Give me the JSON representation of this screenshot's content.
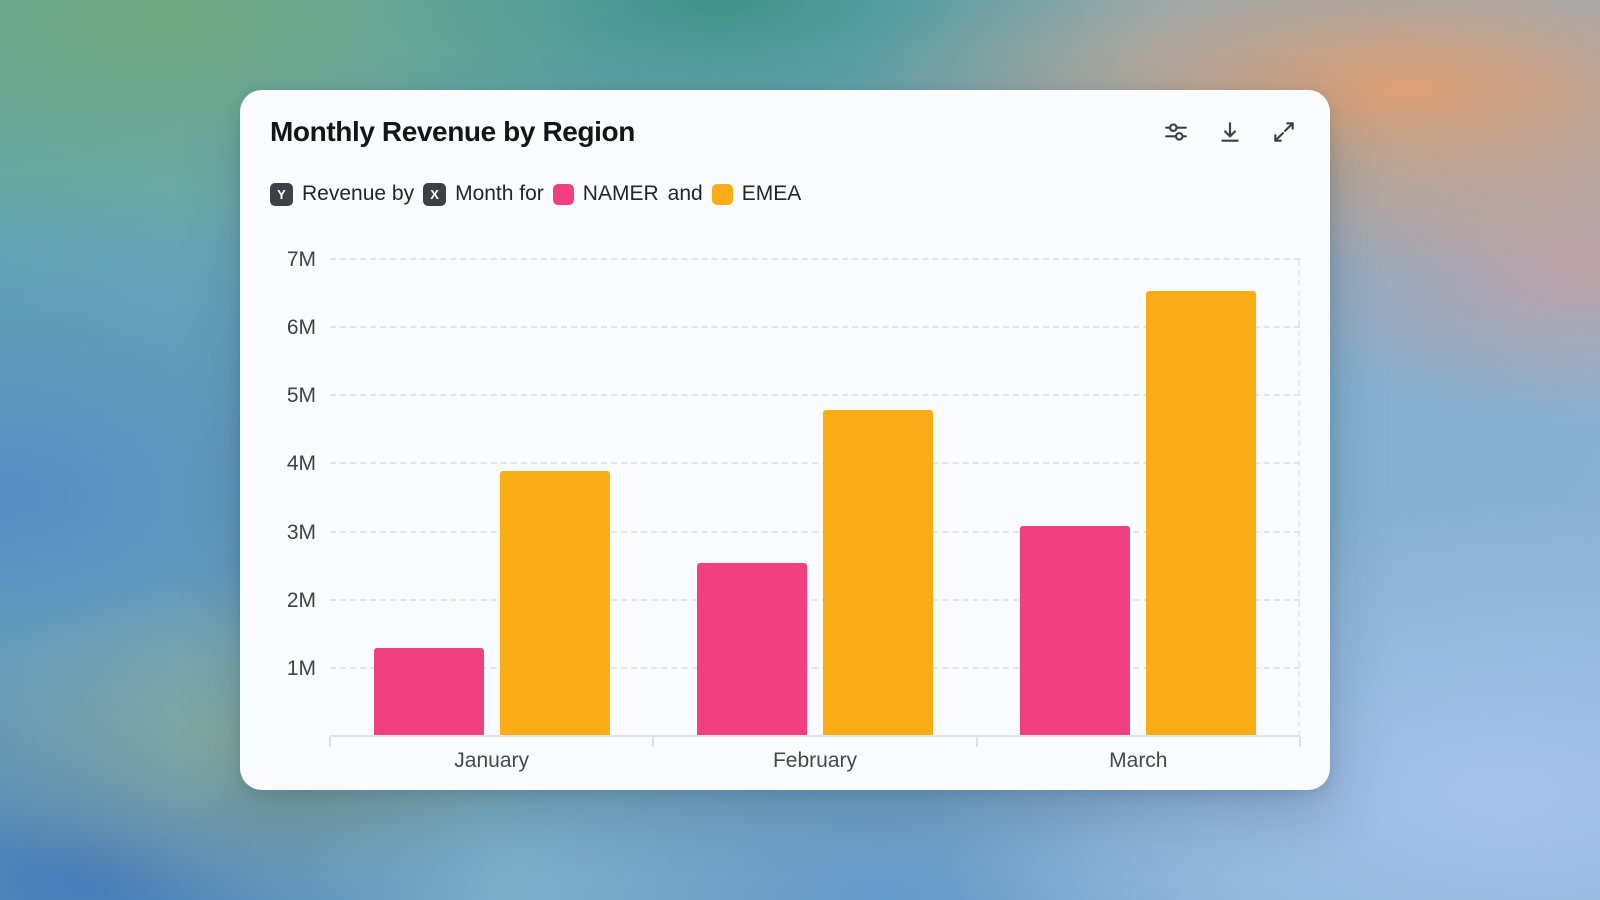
{
  "card": {
    "title": "Monthly Revenue by Region",
    "toolbar_icons": [
      "sliders",
      "download",
      "expand"
    ],
    "subtitle": {
      "y_badge": "Y",
      "text_revenue": "Revenue by",
      "x_badge": "X",
      "text_month": "Month for",
      "series_1": "NAMER",
      "conjunction": "and",
      "series_2": "EMEA"
    }
  },
  "colors": {
    "namer": "#f23f7e",
    "emea": "#fbad18",
    "badge_bg": "#3f4046",
    "card_bg": "#fafbfc",
    "gridline": "#e4e5e9"
  },
  "chart_data": {
    "type": "bar",
    "title": "Monthly Revenue by Region",
    "categories": [
      "January",
      "February",
      "March"
    ],
    "series": [
      {
        "name": "NAMER",
        "color": "#f23f7e",
        "values": [
          1.3,
          2.55,
          3.1
        ]
      },
      {
        "name": "EMEA",
        "color": "#fbad18",
        "values": [
          3.9,
          4.8,
          6.55
        ]
      }
    ],
    "xlabel": "Month",
    "ylabel": "Revenue",
    "ylim": [
      0,
      7
    ],
    "ytick_labels": [
      "1M",
      "2M",
      "3M",
      "4M",
      "5M",
      "6M",
      "7M"
    ],
    "grid": "horizontal-dashed",
    "legend_position": "inline-subtitle"
  }
}
